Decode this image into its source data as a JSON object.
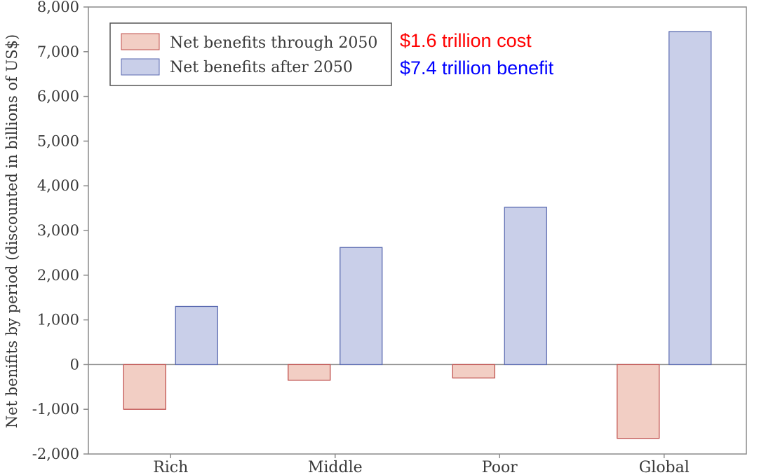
{
  "chart_data": {
    "type": "bar",
    "categories": [
      "Rich",
      "Middle",
      "Poor",
      "Global"
    ],
    "series": [
      {
        "name": "Net benefits through 2050",
        "values": [
          -1000,
          -350,
          -300,
          -1650
        ],
        "color": "#f2cec4",
        "stroke": "#c0504d"
      },
      {
        "name": "Net benefits after 2050",
        "values": [
          1300,
          2620,
          3520,
          7450
        ],
        "color": "#c9cfe9",
        "stroke": "#5a6ab0"
      }
    ],
    "title": "",
    "xlabel": "",
    "ylabel": "Net benifits by period (discounted in billions of US$)",
    "ylim": [
      -2000,
      8000
    ],
    "yticks": [
      -2000,
      -1000,
      0,
      1000,
      2000,
      3000,
      4000,
      5000,
      6000,
      7000,
      8000
    ],
    "ytick_labels": [
      "-2,000",
      "-1,000",
      "0",
      "1,000",
      "2,000",
      "3,000",
      "4,000",
      "5,000",
      "6,000",
      "7,000",
      "8,000"
    ],
    "grid": false,
    "legend_placement": "top-left",
    "annotations": [
      {
        "text": "$1.6 trillion cost",
        "color": "#ff0000"
      },
      {
        "text": "$7.4 trillion benefit",
        "color": "#0000ff"
      }
    ],
    "frame_color": "#8a8a8a"
  }
}
